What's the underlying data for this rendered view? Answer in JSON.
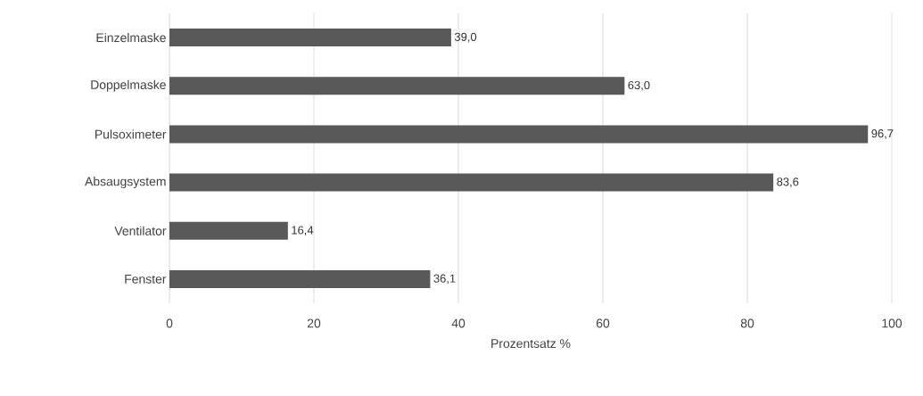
{
  "chart_data": {
    "type": "bar",
    "orientation": "horizontal",
    "xlabel": "Prozentsatz %",
    "categories": [
      "Einzelmaske",
      "Doppelmaske",
      "Pulsoximeter",
      "Absaugsystem",
      "Ventilator",
      "Fenster"
    ],
    "values": [
      39.0,
      63.0,
      96.7,
      83.6,
      16.4,
      36.1
    ],
    "value_labels": [
      "39,0",
      "63,0",
      "96,7",
      "83,6",
      "16,4",
      "36,1"
    ],
    "color": "#595959",
    "xlim": [
      0,
      100
    ],
    "xticks": [
      0,
      20,
      40,
      60,
      80,
      100
    ],
    "grid": "x"
  }
}
